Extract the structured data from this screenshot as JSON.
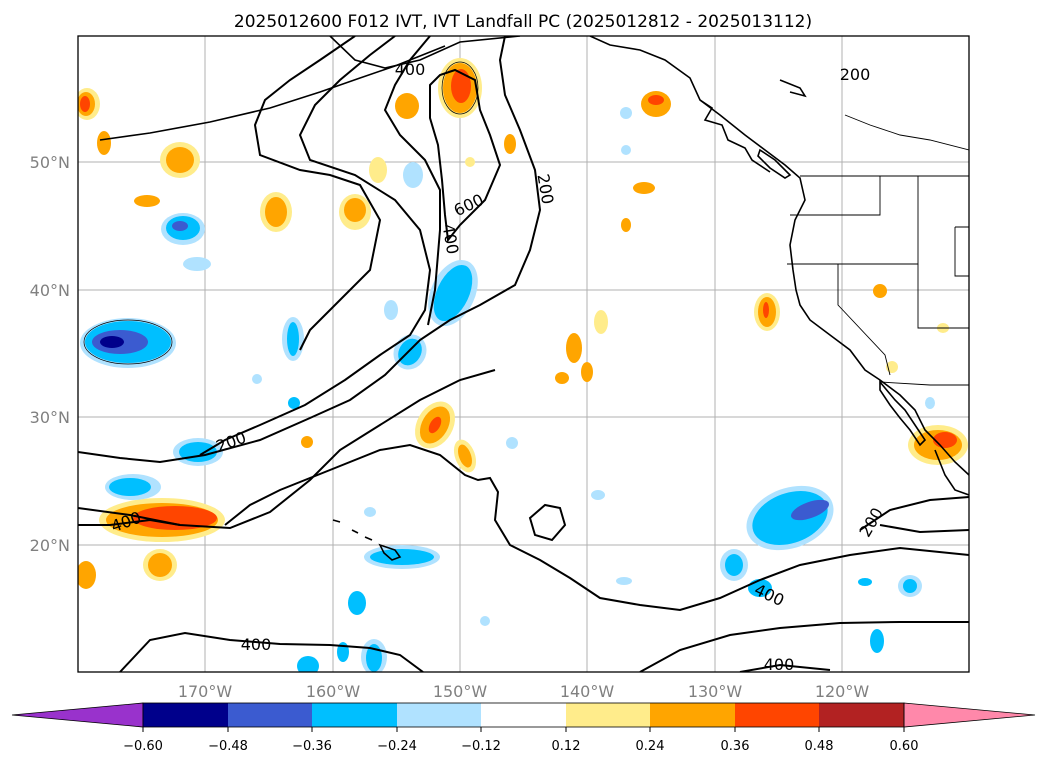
{
  "title": "2025012600 F012 IVT, IVT Landfall PC (2025012812 - 2025013112)",
  "map": {
    "lat_ticks": [
      "50°N",
      "40°N",
      "30°N",
      "20°N"
    ],
    "lon_ticks": [
      "170°W",
      "160°W",
      "150°W",
      "140°W",
      "130°W",
      "120°W"
    ],
    "ivt_contour_labels": [
      "200",
      "200",
      "200",
      "200",
      "400",
      "400",
      "400",
      "400",
      "400",
      "600"
    ],
    "gridlines": true,
    "projection": "PlateCarree"
  },
  "colorbar": {
    "ticks": [
      "−0.60",
      "−0.48",
      "−0.36",
      "−0.24",
      "−0.12",
      "0.12",
      "0.24",
      "0.36",
      "0.48",
      "0.60"
    ],
    "colors": [
      "#9932cc",
      "#00008b",
      "#3b5bd0",
      "#00bfff",
      "#b0e2ff",
      "#ffffff",
      "#ffec8b",
      "#ffa500",
      "#ff4500",
      "#b22222",
      "#ff88aa"
    ],
    "extend": "both"
  }
}
